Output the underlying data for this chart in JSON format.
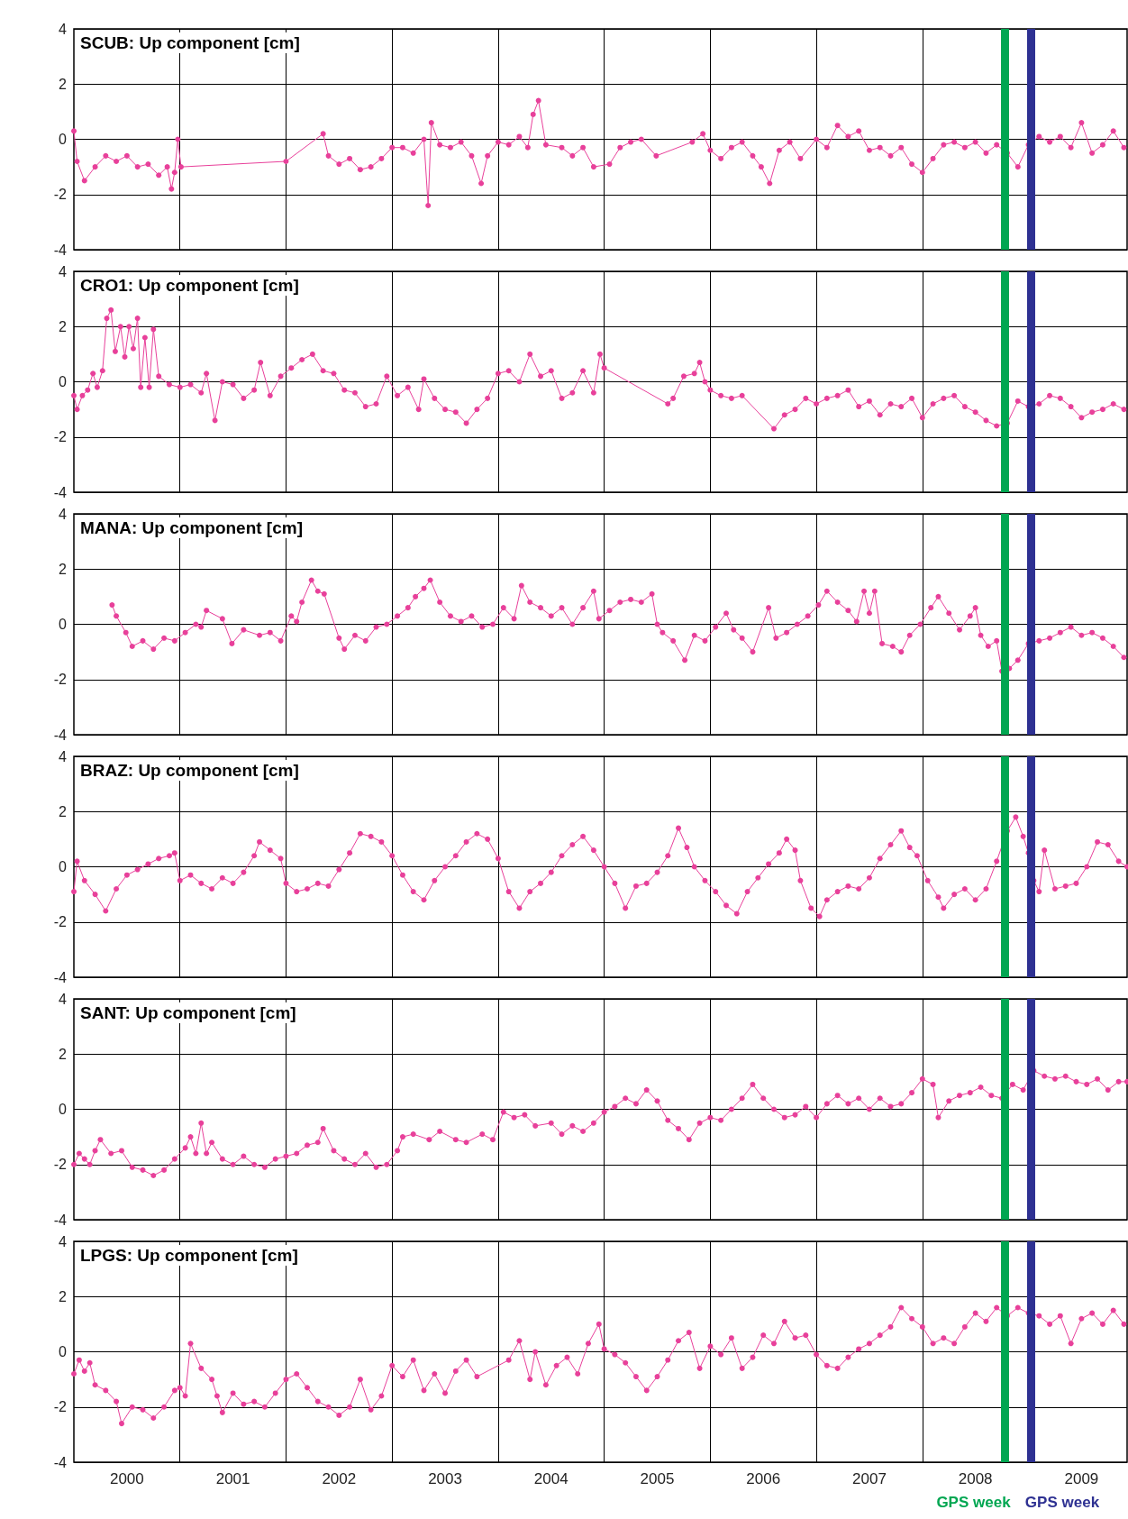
{
  "chart_data": [
    {
      "type": "line",
      "title": "SCUB: Up component [cm]",
      "tick_labels": "y",
      "grid": true,
      "marker": "circle",
      "xlim": [
        2000,
        2009.93
      ],
      "ylim": [
        -4,
        4
      ],
      "yticks": [
        -4,
        -2,
        0,
        2,
        4
      ],
      "xticks": [
        {
          "value": 2001,
          "label": null
        },
        {
          "value": 2002,
          "label": null
        },
        {
          "value": 2003,
          "label": null
        },
        {
          "value": 2004,
          "label": null
        },
        {
          "value": 2005,
          "label": null
        },
        {
          "value": 2006,
          "label": null
        },
        {
          "value": 2007,
          "label": null
        },
        {
          "value": 2008,
          "label": null
        },
        {
          "value": 2009,
          "label": null
        }
      ],
      "ref_lines": [
        {
          "axis": "x",
          "value": 2008.78,
          "label": null,
          "color": "#00a651"
        },
        {
          "axis": "x",
          "value": 2009.02,
          "label": null,
          "color": "#2e3192"
        }
      ],
      "x": [
        2000.0,
        2000.03,
        2000.1,
        2000.2,
        2000.3,
        2000.4,
        2000.5,
        2000.6,
        2000.7,
        2000.8,
        2000.88,
        2000.92,
        2000.95,
        2000.98,
        2001.01,
        2002.0,
        2002.35,
        2002.4,
        2002.5,
        2002.6,
        2002.7,
        2002.8,
        2002.9,
        2003.0,
        2003.1,
        2003.2,
        2003.3,
        2003.34,
        2003.37,
        2003.45,
        2003.55,
        2003.65,
        2003.75,
        2003.84,
        2003.9,
        2004.0,
        2004.1,
        2004.2,
        2004.28,
        2004.33,
        2004.38,
        2004.45,
        2004.6,
        2004.7,
        2004.8,
        2004.9,
        2005.05,
        2005.15,
        2005.25,
        2005.35,
        2005.49,
        2005.83,
        2005.93,
        2006.0,
        2006.1,
        2006.2,
        2006.3,
        2006.4,
        2006.48,
        2006.56,
        2006.65,
        2006.75,
        2006.85,
        2007.0,
        2007.1,
        2007.2,
        2007.3,
        2007.4,
        2007.5,
        2007.6,
        2007.7,
        2007.8,
        2007.9,
        2008.0,
        2008.1,
        2008.2,
        2008.3,
        2008.4,
        2008.5,
        2008.6,
        2008.7,
        2008.8,
        2008.9,
        2009.0,
        2009.1,
        2009.2,
        2009.3,
        2009.4,
        2009.5,
        2009.6,
        2009.7,
        2009.8,
        2009.9
      ],
      "series": [
        {
          "color": "#e8409a",
          "values": [
            0.3,
            -0.8,
            -1.5,
            -1.0,
            -0.6,
            -0.8,
            -0.6,
            -1.0,
            -0.9,
            -1.3,
            -1.0,
            -1.8,
            -1.2,
            0.0,
            -1.0,
            -0.8,
            0.2,
            -0.6,
            -0.9,
            -0.7,
            -1.1,
            -1.0,
            -0.7,
            -0.3,
            -0.3,
            -0.5,
            0.0,
            -2.4,
            0.6,
            -0.2,
            -0.3,
            -0.1,
            -0.6,
            -1.6,
            -0.6,
            -0.1,
            -0.2,
            0.1,
            -0.3,
            0.9,
            1.4,
            -0.2,
            -0.3,
            -0.6,
            -0.3,
            -1.0,
            -0.9,
            -0.3,
            -0.1,
            0.0,
            -0.6,
            -0.1,
            0.2,
            -0.4,
            -0.7,
            -0.3,
            -0.1,
            -0.6,
            -1.0,
            -1.6,
            -0.4,
            -0.1,
            -0.7,
            0.0,
            -0.3,
            0.5,
            0.1,
            0.3,
            -0.4,
            -0.3,
            -0.6,
            -0.3,
            -0.9,
            -1.2,
            -0.7,
            -0.2,
            -0.1,
            -0.3,
            -0.1,
            -0.5,
            -0.2,
            -0.5,
            -1.0,
            -0.2,
            0.1,
            -0.1,
            0.1,
            -0.3,
            0.6,
            -0.5,
            -0.2,
            0.3,
            -0.3
          ]
        }
      ]
    },
    {
      "type": "line",
      "title": "CRO1: Up component [cm]",
      "tick_labels": "y",
      "grid": true,
      "marker": "circle",
      "xlim": [
        2000,
        2009.93
      ],
      "ylim": [
        -4,
        4
      ],
      "yticks": [
        -4,
        -2,
        0,
        2,
        4
      ],
      "xticks": [
        {
          "value": 2001,
          "label": null
        },
        {
          "value": 2002,
          "label": null
        },
        {
          "value": 2003,
          "label": null
        },
        {
          "value": 2004,
          "label": null
        },
        {
          "value": 2005,
          "label": null
        },
        {
          "value": 2006,
          "label": null
        },
        {
          "value": 2007,
          "label": null
        },
        {
          "value": 2008,
          "label": null
        },
        {
          "value": 2009,
          "label": null
        }
      ],
      "ref_lines": [
        {
          "axis": "x",
          "value": 2008.78,
          "label": null,
          "color": "#00a651"
        },
        {
          "axis": "x",
          "value": 2009.02,
          "label": null,
          "color": "#2e3192"
        }
      ],
      "x": [
        2000.0,
        2000.03,
        2000.08,
        2000.13,
        2000.18,
        2000.22,
        2000.27,
        2000.31,
        2000.35,
        2000.39,
        2000.44,
        2000.48,
        2000.52,
        2000.56,
        2000.6,
        2000.63,
        2000.67,
        2000.71,
        2000.75,
        2000.8,
        2000.9,
        2001.0,
        2001.1,
        2001.2,
        2001.25,
        2001.33,
        2001.4,
        2001.5,
        2001.6,
        2001.7,
        2001.76,
        2001.85,
        2001.95,
        2002.05,
        2002.15,
        2002.25,
        2002.35,
        2002.45,
        2002.55,
        2002.65,
        2002.75,
        2002.85,
        2002.95,
        2003.05,
        2003.15,
        2003.25,
        2003.3,
        2003.4,
        2003.5,
        2003.6,
        2003.7,
        2003.8,
        2003.9,
        2004.0,
        2004.1,
        2004.2,
        2004.3,
        2004.4,
        2004.5,
        2004.6,
        2004.7,
        2004.8,
        2004.9,
        2004.96,
        2005.0,
        2005.6,
        2005.65,
        2005.75,
        2005.85,
        2005.9,
        2005.95,
        2006.0,
        2006.1,
        2006.2,
        2006.3,
        2006.6,
        2006.7,
        2006.8,
        2006.9,
        2007.0,
        2007.1,
        2007.2,
        2007.3,
        2007.4,
        2007.5,
        2007.6,
        2007.7,
        2007.8,
        2007.9,
        2008.0,
        2008.1,
        2008.2,
        2008.3,
        2008.4,
        2008.5,
        2008.6,
        2008.7,
        2008.8,
        2008.9,
        2009.0,
        2009.1,
        2009.2,
        2009.3,
        2009.4,
        2009.5,
        2009.6,
        2009.7,
        2009.8,
        2009.9
      ],
      "series": [
        {
          "color": "#e8409a",
          "values": [
            -0.5,
            -1.0,
            -0.5,
            -0.3,
            0.3,
            -0.2,
            0.4,
            2.3,
            2.6,
            1.1,
            2.0,
            0.9,
            2.0,
            1.2,
            2.3,
            -0.2,
            1.6,
            -0.2,
            1.9,
            0.2,
            -0.1,
            -0.2,
            -0.1,
            -0.4,
            0.3,
            -1.4,
            0.0,
            -0.1,
            -0.6,
            -0.3,
            0.7,
            -0.5,
            0.2,
            0.5,
            0.8,
            1.0,
            0.4,
            0.3,
            -0.3,
            -0.4,
            -0.9,
            -0.8,
            0.2,
            -0.5,
            -0.2,
            -1.0,
            0.1,
            -0.6,
            -1.0,
            -1.1,
            -1.5,
            -1.0,
            -0.6,
            0.3,
            0.4,
            0.0,
            1.0,
            0.2,
            0.4,
            -0.6,
            -0.4,
            0.4,
            -0.4,
            1.0,
            0.5,
            -0.8,
            -0.6,
            0.2,
            0.3,
            0.7,
            0.0,
            -0.3,
            -0.5,
            -0.6,
            -0.5,
            -1.7,
            -1.2,
            -1.0,
            -0.6,
            -0.8,
            -0.6,
            -0.5,
            -0.3,
            -0.9,
            -0.7,
            -1.2,
            -0.8,
            -0.9,
            -0.6,
            -1.3,
            -0.8,
            -0.6,
            -0.5,
            -0.9,
            -1.1,
            -1.4,
            -1.6,
            -1.5,
            -0.7,
            -0.9,
            -0.8,
            -0.5,
            -0.6,
            -0.9,
            -1.3,
            -1.1,
            -1.0,
            -0.8,
            -1.0
          ]
        }
      ]
    },
    {
      "type": "line",
      "title": "MANA: Up component [cm]",
      "tick_labels": "y",
      "grid": true,
      "marker": "circle",
      "xlim": [
        2000,
        2009.93
      ],
      "ylim": [
        -4,
        4
      ],
      "yticks": [
        -4,
        -2,
        0,
        2,
        4
      ],
      "xticks": [
        {
          "value": 2001,
          "label": null
        },
        {
          "value": 2002,
          "label": null
        },
        {
          "value": 2003,
          "label": null
        },
        {
          "value": 2004,
          "label": null
        },
        {
          "value": 2005,
          "label": null
        },
        {
          "value": 2006,
          "label": null
        },
        {
          "value": 2007,
          "label": null
        },
        {
          "value": 2008,
          "label": null
        },
        {
          "value": 2009,
          "label": null
        }
      ],
      "ref_lines": [
        {
          "axis": "x",
          "value": 2008.78,
          "label": null,
          "color": "#00a651"
        },
        {
          "axis": "x",
          "value": 2009.02,
          "label": null,
          "color": "#2e3192"
        }
      ],
      "x": [
        2000.36,
        2000.4,
        2000.49,
        2000.55,
        2000.65,
        2000.75,
        2000.85,
        2000.95,
        2001.05,
        2001.15,
        2001.2,
        2001.25,
        2001.4,
        2001.49,
        2001.6,
        2001.75,
        2001.85,
        2001.95,
        2002.05,
        2002.1,
        2002.15,
        2002.24,
        2002.3,
        2002.36,
        2002.5,
        2002.55,
        2002.65,
        2002.75,
        2002.85,
        2002.95,
        2003.05,
        2003.15,
        2003.22,
        2003.3,
        2003.36,
        2003.45,
        2003.55,
        2003.65,
        2003.75,
        2003.85,
        2003.95,
        2004.05,
        2004.15,
        2004.22,
        2004.3,
        2004.4,
        2004.5,
        2004.6,
        2004.7,
        2004.8,
        2004.9,
        2004.95,
        2005.05,
        2005.15,
        2005.25,
        2005.35,
        2005.45,
        2005.5,
        2005.55,
        2005.65,
        2005.76,
        2005.85,
        2005.95,
        2006.05,
        2006.15,
        2006.22,
        2006.3,
        2006.4,
        2006.55,
        2006.62,
        2006.72,
        2006.82,
        2006.92,
        2007.02,
        2007.1,
        2007.2,
        2007.3,
        2007.38,
        2007.45,
        2007.5,
        2007.55,
        2007.62,
        2007.72,
        2007.8,
        2007.88,
        2007.98,
        2008.08,
        2008.15,
        2008.25,
        2008.35,
        2008.45,
        2008.5,
        2008.55,
        2008.62,
        2008.7,
        2008.75,
        2008.82,
        2008.9,
        2009.0,
        2009.1,
        2009.2,
        2009.3,
        2009.4,
        2009.5,
        2009.6,
        2009.7,
        2009.8,
        2009.9
      ],
      "series": [
        {
          "color": "#e8409a",
          "values": [
            0.7,
            0.3,
            -0.3,
            -0.8,
            -0.6,
            -0.9,
            -0.5,
            -0.6,
            -0.3,
            0.0,
            -0.1,
            0.5,
            0.2,
            -0.7,
            -0.2,
            -0.4,
            -0.3,
            -0.6,
            0.3,
            0.1,
            0.8,
            1.6,
            1.2,
            1.1,
            -0.5,
            -0.9,
            -0.4,
            -0.6,
            -0.1,
            0.0,
            0.3,
            0.6,
            1.0,
            1.3,
            1.6,
            0.8,
            0.3,
            0.1,
            0.3,
            -0.1,
            0.0,
            0.6,
            0.2,
            1.4,
            0.8,
            0.6,
            0.3,
            0.6,
            0.0,
            0.6,
            1.2,
            0.2,
            0.5,
            0.8,
            0.9,
            0.8,
            1.1,
            0.0,
            -0.3,
            -0.6,
            -1.3,
            -0.4,
            -0.6,
            -0.1,
            0.4,
            -0.2,
            -0.5,
            -1.0,
            0.6,
            -0.5,
            -0.3,
            0.0,
            0.3,
            0.7,
            1.2,
            0.8,
            0.5,
            0.1,
            1.2,
            0.4,
            1.2,
            -0.7,
            -0.8,
            -1.0,
            -0.4,
            0.0,
            0.6,
            1.0,
            0.4,
            -0.2,
            0.3,
            0.6,
            -0.4,
            -0.8,
            -0.6,
            -1.7,
            -1.6,
            -1.3,
            -0.7,
            -0.6,
            -0.5,
            -0.3,
            -0.1,
            -0.4,
            -0.3,
            -0.5,
            -0.8,
            -1.2
          ]
        }
      ]
    },
    {
      "type": "line",
      "title": "BRAZ: Up component [cm]",
      "tick_labels": "y",
      "grid": true,
      "marker": "circle",
      "xlim": [
        2000,
        2009.93
      ],
      "ylim": [
        -4,
        4
      ],
      "yticks": [
        -4,
        -2,
        0,
        2,
        4
      ],
      "xticks": [
        {
          "value": 2001,
          "label": null
        },
        {
          "value": 2002,
          "label": null
        },
        {
          "value": 2003,
          "label": null
        },
        {
          "value": 2004,
          "label": null
        },
        {
          "value": 2005,
          "label": null
        },
        {
          "value": 2006,
          "label": null
        },
        {
          "value": 2007,
          "label": null
        },
        {
          "value": 2008,
          "label": null
        },
        {
          "value": 2009,
          "label": null
        }
      ],
      "ref_lines": [
        {
          "axis": "x",
          "value": 2008.78,
          "label": null,
          "color": "#00a651"
        },
        {
          "axis": "x",
          "value": 2009.02,
          "label": null,
          "color": "#2e3192"
        }
      ],
      "x": [
        2000.0,
        2000.03,
        2000.1,
        2000.2,
        2000.3,
        2000.4,
        2000.5,
        2000.6,
        2000.7,
        2000.8,
        2000.9,
        2000.95,
        2001.0,
        2001.1,
        2001.2,
        2001.3,
        2001.4,
        2001.5,
        2001.6,
        2001.7,
        2001.75,
        2001.85,
        2001.95,
        2002.0,
        2002.1,
        2002.2,
        2002.3,
        2002.4,
        2002.5,
        2002.6,
        2002.7,
        2002.8,
        2002.9,
        2003.0,
        2003.1,
        2003.2,
        2003.3,
        2003.4,
        2003.5,
        2003.6,
        2003.7,
        2003.8,
        2003.9,
        2004.0,
        2004.1,
        2004.2,
        2004.3,
        2004.4,
        2004.5,
        2004.6,
        2004.7,
        2004.8,
        2004.9,
        2005.0,
        2005.1,
        2005.2,
        2005.3,
        2005.4,
        2005.5,
        2005.6,
        2005.7,
        2005.78,
        2005.85,
        2005.95,
        2006.05,
        2006.15,
        2006.25,
        2006.35,
        2006.45,
        2006.55,
        2006.65,
        2006.72,
        2006.8,
        2006.85,
        2006.95,
        2007.03,
        2007.1,
        2007.2,
        2007.3,
        2007.4,
        2007.5,
        2007.6,
        2007.7,
        2007.8,
        2007.88,
        2007.95,
        2008.05,
        2008.15,
        2008.2,
        2008.3,
        2008.4,
        2008.5,
        2008.6,
        2008.7,
        2008.8,
        2008.88,
        2008.95,
        2009.0,
        2009.05,
        2009.1,
        2009.15,
        2009.25,
        2009.35,
        2009.45,
        2009.55,
        2009.65,
        2009.75,
        2009.85,
        2009.93
      ],
      "series": [
        {
          "color": "#e8409a",
          "values": [
            -0.9,
            0.2,
            -0.5,
            -1.0,
            -1.6,
            -0.8,
            -0.3,
            -0.1,
            0.1,
            0.3,
            0.4,
            0.5,
            -0.5,
            -0.3,
            -0.6,
            -0.8,
            -0.4,
            -0.6,
            -0.2,
            0.4,
            0.9,
            0.6,
            0.3,
            -0.6,
            -0.9,
            -0.8,
            -0.6,
            -0.7,
            -0.1,
            0.5,
            1.2,
            1.1,
            0.9,
            0.4,
            -0.3,
            -0.9,
            -1.2,
            -0.5,
            0.0,
            0.4,
            0.9,
            1.2,
            1.0,
            0.3,
            -0.9,
            -1.5,
            -0.9,
            -0.6,
            -0.2,
            0.4,
            0.8,
            1.1,
            0.6,
            0.0,
            -0.6,
            -1.5,
            -0.7,
            -0.6,
            -0.2,
            0.4,
            1.4,
            0.7,
            0.0,
            -0.5,
            -0.9,
            -1.4,
            -1.7,
            -0.9,
            -0.4,
            0.1,
            0.5,
            1.0,
            0.6,
            -0.5,
            -1.5,
            -1.8,
            -1.2,
            -0.9,
            -0.7,
            -0.8,
            -0.4,
            0.3,
            0.8,
            1.3,
            0.7,
            0.4,
            -0.5,
            -1.1,
            -1.5,
            -1.0,
            -0.8,
            -1.2,
            -0.8,
            0.2,
            1.3,
            1.8,
            1.1,
            0.5,
            -0.5,
            -0.9,
            0.6,
            -0.8,
            -0.7,
            -0.6,
            0.0,
            0.9,
            0.8,
            0.2,
            0.0
          ]
        }
      ]
    },
    {
      "type": "line",
      "title": "SANT: Up component [cm]",
      "tick_labels": "y",
      "grid": true,
      "marker": "circle",
      "xlim": [
        2000,
        2009.93
      ],
      "ylim": [
        -4,
        4
      ],
      "yticks": [
        -4,
        -2,
        0,
        2,
        4
      ],
      "xticks": [
        {
          "value": 2001,
          "label": null
        },
        {
          "value": 2002,
          "label": null
        },
        {
          "value": 2003,
          "label": null
        },
        {
          "value": 2004,
          "label": null
        },
        {
          "value": 2005,
          "label": null
        },
        {
          "value": 2006,
          "label": null
        },
        {
          "value": 2007,
          "label": null
        },
        {
          "value": 2008,
          "label": null
        },
        {
          "value": 2009,
          "label": null
        }
      ],
      "ref_lines": [
        {
          "axis": "x",
          "value": 2008.78,
          "label": null,
          "color": "#00a651"
        },
        {
          "axis": "x",
          "value": 2009.02,
          "label": null,
          "color": "#2e3192"
        }
      ],
      "x": [
        2000.0,
        2000.05,
        2000.1,
        2000.15,
        2000.2,
        2000.25,
        2000.35,
        2000.45,
        2000.55,
        2000.65,
        2000.75,
        2000.85,
        2000.95,
        2001.05,
        2001.1,
        2001.15,
        2001.2,
        2001.25,
        2001.3,
        2001.4,
        2001.5,
        2001.6,
        2001.7,
        2001.8,
        2001.9,
        2002.0,
        2002.1,
        2002.2,
        2002.3,
        2002.35,
        2002.45,
        2002.55,
        2002.65,
        2002.75,
        2002.85,
        2002.95,
        2003.05,
        2003.1,
        2003.2,
        2003.35,
        2003.45,
        2003.6,
        2003.7,
        2003.85,
        2003.95,
        2004.05,
        2004.15,
        2004.25,
        2004.35,
        2004.5,
        2004.6,
        2004.7,
        2004.8,
        2004.9,
        2005.0,
        2005.1,
        2005.2,
        2005.3,
        2005.4,
        2005.5,
        2005.6,
        2005.7,
        2005.8,
        2005.9,
        2006.0,
        2006.1,
        2006.2,
        2006.3,
        2006.4,
        2006.5,
        2006.6,
        2006.7,
        2006.8,
        2006.9,
        2007.0,
        2007.1,
        2007.2,
        2007.3,
        2007.4,
        2007.5,
        2007.6,
        2007.7,
        2007.8,
        2007.9,
        2008.0,
        2008.1,
        2008.15,
        2008.25,
        2008.35,
        2008.45,
        2008.55,
        2008.65,
        2008.75,
        2008.85,
        2008.95,
        2009.05,
        2009.15,
        2009.25,
        2009.35,
        2009.45,
        2009.55,
        2009.65,
        2009.75,
        2009.85,
        2009.93
      ],
      "series": [
        {
          "color": "#e8409a",
          "values": [
            -2.0,
            -1.6,
            -1.8,
            -2.0,
            -1.5,
            -1.1,
            -1.6,
            -1.5,
            -2.1,
            -2.2,
            -2.4,
            -2.2,
            -1.8,
            -1.4,
            -1.0,
            -1.6,
            -0.5,
            -1.6,
            -1.2,
            -1.8,
            -2.0,
            -1.7,
            -2.0,
            -2.1,
            -1.8,
            -1.7,
            -1.6,
            -1.3,
            -1.2,
            -0.7,
            -1.5,
            -1.8,
            -2.0,
            -1.6,
            -2.1,
            -2.0,
            -1.5,
            -1.0,
            -0.9,
            -1.1,
            -0.8,
            -1.1,
            -1.2,
            -0.9,
            -1.1,
            -0.1,
            -0.3,
            -0.2,
            -0.6,
            -0.5,
            -0.9,
            -0.6,
            -0.8,
            -0.5,
            -0.1,
            0.1,
            0.4,
            0.2,
            0.7,
            0.3,
            -0.4,
            -0.7,
            -1.1,
            -0.5,
            -0.3,
            -0.4,
            0.0,
            0.4,
            0.9,
            0.4,
            0.0,
            -0.3,
            -0.2,
            0.1,
            -0.3,
            0.2,
            0.5,
            0.2,
            0.4,
            0.0,
            0.4,
            0.1,
            0.2,
            0.6,
            1.1,
            0.9,
            -0.3,
            0.3,
            0.5,
            0.6,
            0.8,
            0.5,
            0.4,
            0.9,
            0.7,
            1.4,
            1.2,
            1.1,
            1.2,
            1.0,
            0.9,
            1.1,
            0.7,
            1.0,
            1.0
          ]
        }
      ]
    },
    {
      "type": "line",
      "title": "LPGS: Up component [cm]",
      "grid": true,
      "marker": "circle",
      "xlim": [
        2000,
        2009.93
      ],
      "ylim": [
        -4,
        4
      ],
      "yticks": [
        -4,
        -2,
        0,
        2,
        4
      ],
      "xticks": [
        {
          "value": 2000.5,
          "label": "2000"
        },
        {
          "value": 2001,
          "label": null
        },
        {
          "value": 2001.5,
          "label": "2001"
        },
        {
          "value": 2002,
          "label": null
        },
        {
          "value": 2002.5,
          "label": "2002"
        },
        {
          "value": 2003,
          "label": null
        },
        {
          "value": 2003.5,
          "label": "2003"
        },
        {
          "value": 2004,
          "label": null
        },
        {
          "value": 2004.5,
          "label": "2004"
        },
        {
          "value": 2005,
          "label": null
        },
        {
          "value": 2005.5,
          "label": "2005"
        },
        {
          "value": 2006,
          "label": null
        },
        {
          "value": 2006.5,
          "label": "2006"
        },
        {
          "value": 2007,
          "label": null
        },
        {
          "value": 2007.5,
          "label": "2007"
        },
        {
          "value": 2008,
          "label": null
        },
        {
          "value": 2008.5,
          "label": "2008"
        },
        {
          "value": 2009,
          "label": null
        },
        {
          "value": 2009.5,
          "label": "2009"
        }
      ],
      "ref_lines": [
        {
          "axis": "x",
          "value": 2008.78,
          "label": "GPS week",
          "color": "#00a651"
        },
        {
          "axis": "x",
          "value": 2009.02,
          "label": "GPS week",
          "color": "#2e3192"
        }
      ],
      "x": [
        2000.0,
        2000.05,
        2000.1,
        2000.15,
        2000.2,
        2000.3,
        2000.4,
        2000.45,
        2000.55,
        2000.65,
        2000.75,
        2000.85,
        2000.95,
        2001.0,
        2001.05,
        2001.1,
        2001.2,
        2001.3,
        2001.35,
        2001.4,
        2001.5,
        2001.6,
        2001.7,
        2001.8,
        2001.9,
        2002.0,
        2002.1,
        2002.2,
        2002.3,
        2002.4,
        2002.5,
        2002.6,
        2002.7,
        2002.8,
        2002.9,
        2003.0,
        2003.1,
        2003.2,
        2003.3,
        2003.4,
        2003.5,
        2003.6,
        2003.7,
        2003.8,
        2004.1,
        2004.2,
        2004.3,
        2004.35,
        2004.45,
        2004.55,
        2004.65,
        2004.75,
        2004.85,
        2004.95,
        2005.0,
        2005.1,
        2005.2,
        2005.3,
        2005.4,
        2005.5,
        2005.6,
        2005.7,
        2005.8,
        2005.9,
        2006.0,
        2006.1,
        2006.2,
        2006.3,
        2006.4,
        2006.5,
        2006.6,
        2006.7,
        2006.8,
        2006.9,
        2007.0,
        2007.1,
        2007.2,
        2007.3,
        2007.4,
        2007.5,
        2007.6,
        2007.7,
        2007.8,
        2007.9,
        2008.0,
        2008.1,
        2008.2,
        2008.3,
        2008.4,
        2008.5,
        2008.6,
        2008.7,
        2008.8,
        2008.9,
        2009.0,
        2009.1,
        2009.2,
        2009.3,
        2009.4,
        2009.5,
        2009.6,
        2009.7,
        2009.8,
        2009.9
      ],
      "series": [
        {
          "color": "#e8409a",
          "values": [
            -0.8,
            -0.3,
            -0.7,
            -0.4,
            -1.2,
            -1.4,
            -1.8,
            -2.6,
            -2.0,
            -2.1,
            -2.4,
            -2.0,
            -1.4,
            -1.3,
            -1.6,
            0.3,
            -0.6,
            -1.0,
            -1.6,
            -2.2,
            -1.5,
            -1.9,
            -1.8,
            -2.0,
            -1.5,
            -1.0,
            -0.8,
            -1.3,
            -1.8,
            -2.0,
            -2.3,
            -2.0,
            -1.0,
            -2.1,
            -1.6,
            -0.5,
            -0.9,
            -0.3,
            -1.4,
            -0.8,
            -1.5,
            -0.7,
            -0.3,
            -0.9,
            -0.3,
            0.4,
            -1.0,
            0.0,
            -1.2,
            -0.5,
            -0.2,
            -0.8,
            0.3,
            1.0,
            0.1,
            -0.1,
            -0.4,
            -0.9,
            -1.4,
            -0.9,
            -0.3,
            0.4,
            0.7,
            -0.6,
            0.2,
            -0.1,
            0.5,
            -0.6,
            -0.2,
            0.6,
            0.3,
            1.1,
            0.5,
            0.6,
            -0.1,
            -0.5,
            -0.6,
            -0.2,
            0.1,
            0.3,
            0.6,
            0.9,
            1.6,
            1.2,
            0.9,
            0.3,
            0.5,
            0.3,
            0.9,
            1.4,
            1.1,
            1.6,
            1.3,
            1.6,
            1.4,
            1.3,
            1.0,
            1.3,
            0.3,
            1.2,
            1.4,
            1.0,
            1.5,
            1.0
          ]
        }
      ]
    }
  ]
}
